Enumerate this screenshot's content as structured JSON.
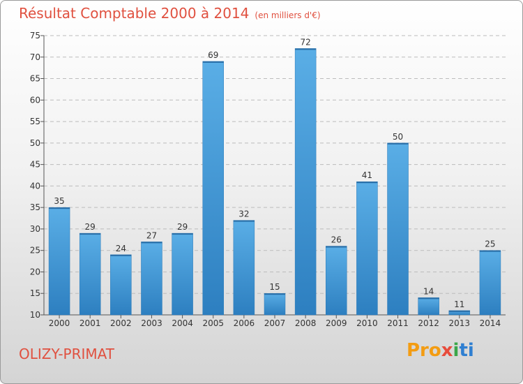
{
  "header": {
    "title": "Résultat Comptable 2000 à 2014",
    "subtitle": "(en milliers d'€)"
  },
  "footer": {
    "place": "OLIZY-PRIMAT",
    "logo_parts": [
      "Pro",
      "x",
      "i",
      "ti"
    ]
  },
  "colors": {
    "title": "#e0503f",
    "bar_light": "#5aaee6",
    "bar_dark": "#2d7fc0",
    "grid": "#bcbcbc"
  },
  "chart_data": {
    "type": "bar",
    "title": "Résultat Comptable 2000 à 2014",
    "subtitle": "(en milliers d'€)",
    "xlabel": "",
    "ylabel": "",
    "categories": [
      "2000",
      "2001",
      "2002",
      "2003",
      "2004",
      "2005",
      "2006",
      "2007",
      "2008",
      "2009",
      "2010",
      "2011",
      "2012",
      "2013",
      "2014"
    ],
    "values": [
      35,
      29,
      24,
      27,
      29,
      69,
      32,
      15,
      72,
      26,
      41,
      50,
      14,
      11,
      25
    ],
    "ylim": [
      10,
      75
    ],
    "yticks": [
      10,
      15,
      20,
      25,
      30,
      35,
      40,
      45,
      50,
      55,
      60,
      65,
      70,
      75
    ],
    "grid": true,
    "data_labels": true
  }
}
